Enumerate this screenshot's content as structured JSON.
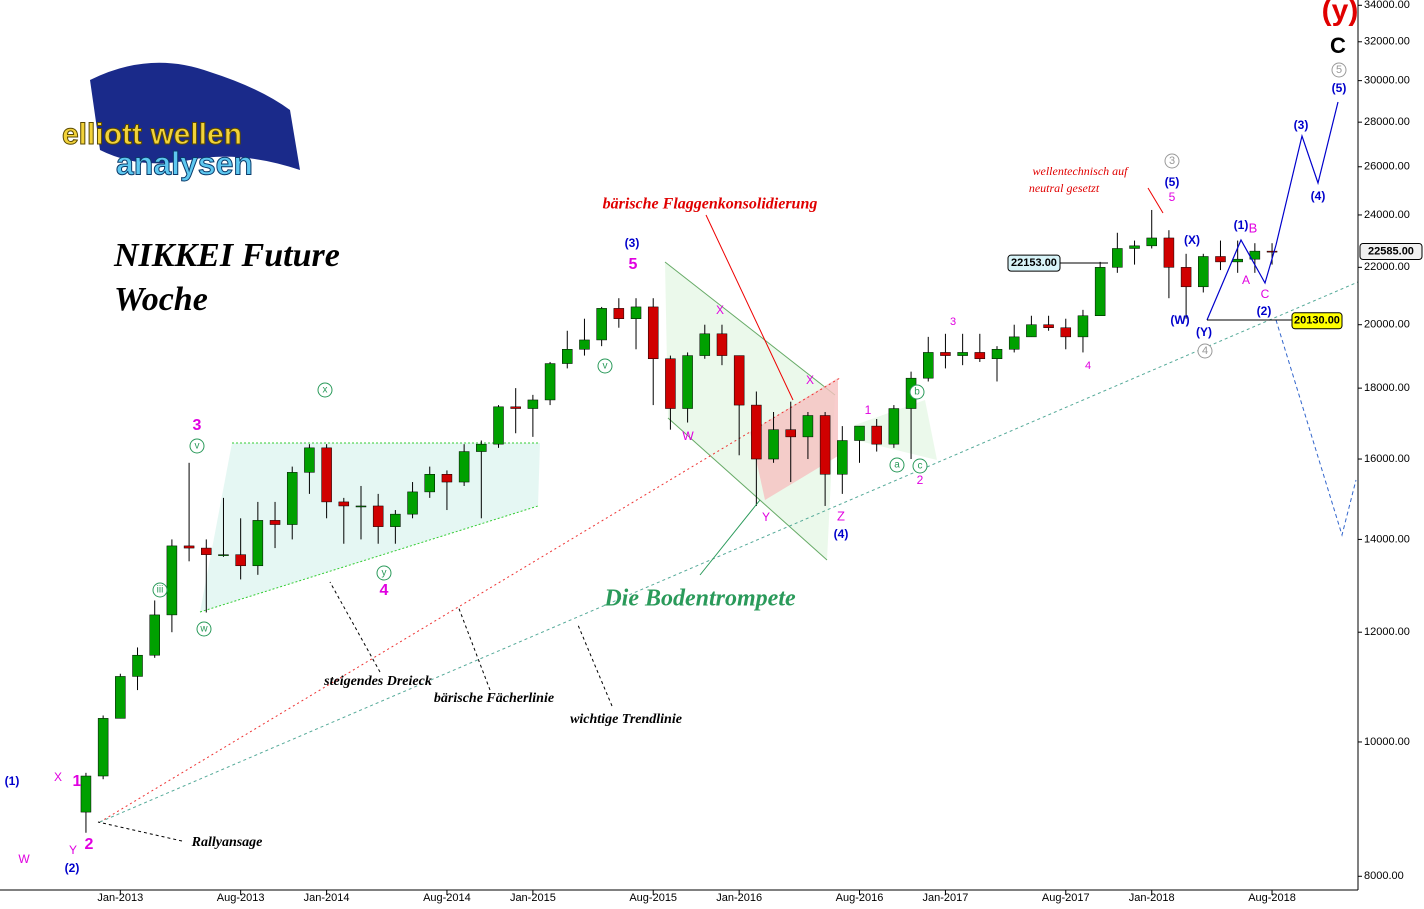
{
  "chart_data": {
    "type": "candlestick",
    "title": "NIKKEI Future",
    "subtitle": "Woche",
    "logo": [
      "elliott wellen",
      "analysen"
    ],
    "log_scale": true,
    "up_color": "#00a000",
    "down_color": "#d00000",
    "xlim": [
      "2012-06",
      "2019-01"
    ],
    "xticks": [
      {
        "value": "2013-01",
        "label": "Jan-2013"
      },
      {
        "value": "2013-08",
        "label": "Aug-2013"
      },
      {
        "value": "2014-01",
        "label": "Jan-2014"
      },
      {
        "value": "2014-08",
        "label": "Aug-2014"
      },
      {
        "value": "2015-01",
        "label": "Jan-2015"
      },
      {
        "value": "2015-08",
        "label": "Aug-2015"
      },
      {
        "value": "2016-01",
        "label": "Jan-2016"
      },
      {
        "value": "2016-08",
        "label": "Aug-2016"
      },
      {
        "value": "2017-01",
        "label": "Jan-2017"
      },
      {
        "value": "2017-08",
        "label": "Aug-2017"
      },
      {
        "value": "2018-01",
        "label": "Jan-2018"
      },
      {
        "value": "2018-08",
        "label": "Aug-2018"
      }
    ],
    "ylim": [
      7640,
      34300
    ],
    "yticks": [
      {
        "value": 8000,
        "label": "8000.00"
      },
      {
        "value": 10000,
        "label": "10000.00"
      },
      {
        "value": 12000,
        "label": "12000.00"
      },
      {
        "value": 14000,
        "label": "14000.00"
      },
      {
        "value": 16000,
        "label": "16000.00"
      },
      {
        "value": 18000,
        "label": "18000.00"
      },
      {
        "value": 20000,
        "label": "20000.00"
      },
      {
        "value": 22000,
        "label": "22000.00"
      },
      {
        "value": 24000,
        "label": "24000.00"
      },
      {
        "value": 26000,
        "label": "26000.00"
      },
      {
        "value": 28000,
        "label": "28000.00"
      },
      {
        "value": 30000,
        "label": "30000.00"
      },
      {
        "value": 32000,
        "label": "32000.00"
      },
      {
        "value": 34000,
        "label": "34000.00"
      }
    ],
    "x": [
      "2012-11",
      "2012-12",
      "2013-01",
      "2013-02",
      "2013-03",
      "2013-04",
      "2013-05",
      "2013-06",
      "2013-07",
      "2013-08",
      "2013-09",
      "2013-10",
      "2013-11",
      "2013-12",
      "2014-01",
      "2014-02",
      "2014-03",
      "2014-04",
      "2014-05",
      "2014-06",
      "2014-07",
      "2014-08",
      "2014-09",
      "2014-10",
      "2014-11",
      "2014-12",
      "2015-01",
      "2015-02",
      "2015-03",
      "2015-04",
      "2015-05",
      "2015-06",
      "2015-07",
      "2015-08",
      "2015-09",
      "2015-10",
      "2015-11",
      "2015-12",
      "2016-01",
      "2016-02",
      "2016-03",
      "2016-04",
      "2016-05",
      "2016-06",
      "2016-07",
      "2016-08",
      "2016-09",
      "2016-10",
      "2016-11",
      "2016-12",
      "2017-01",
      "2017-02",
      "2017-03",
      "2017-04",
      "2017-05",
      "2017-06",
      "2017-07",
      "2017-08",
      "2017-09",
      "2017-10",
      "2017-11",
      "2017-12",
      "2018-01",
      "2018-02",
      "2018-03",
      "2018-04",
      "2018-05",
      "2018-06",
      "2018-07",
      "2018-08"
    ],
    "open": [
      8900,
      9450,
      10400,
      11150,
      11550,
      12350,
      13850,
      13800,
      13650,
      13650,
      13400,
      14450,
      14350,
      15650,
      16300,
      14900,
      14800,
      14800,
      14300,
      14600,
      15150,
      15600,
      15400,
      16200,
      16400,
      17450,
      17400,
      17650,
      18750,
      19200,
      19500,
      20550,
      20200,
      20600,
      18900,
      17400,
      19000,
      19700,
      19000,
      17500,
      16000,
      16800,
      16600,
      17200,
      15600,
      16500,
      16900,
      16400,
      17400,
      18300,
      19100,
      19000,
      19100,
      18900,
      19200,
      19600,
      20000,
      19900,
      19600,
      20300,
      22000,
      22700,
      22800,
      23100,
      22000,
      21300,
      22400,
      22200,
      22300,
      22600
    ],
    "high": [
      9500,
      10450,
      11200,
      11700,
      12650,
      14000,
      15900,
      14000,
      15000,
      14500,
      14900,
      14900,
      15800,
      16400,
      16400,
      15000,
      15300,
      15100,
      14700,
      15400,
      15800,
      15700,
      16400,
      16500,
      17500,
      18000,
      17800,
      18800,
      19800,
      20200,
      20600,
      20900,
      20900,
      20900,
      19000,
      19100,
      20000,
      20000,
      19000,
      17900,
      17300,
      17600,
      17300,
      17300,
      16900,
      16900,
      17100,
      17500,
      18500,
      19600,
      19700,
      19700,
      19700,
      19300,
      20000,
      20300,
      20300,
      20200,
      20500,
      22200,
      23300,
      23000,
      24200,
      23400,
      22500,
      22500,
      23000,
      23000,
      22900,
      22900
    ],
    "low": [
      8600,
      9400,
      10400,
      10900,
      11500,
      12000,
      13500,
      12400,
      13600,
      13100,
      13200,
      13800,
      14000,
      15100,
      14500,
      13900,
      14000,
      13900,
      13900,
      14500,
      15000,
      14700,
      15300,
      14500,
      16300,
      16700,
      16600,
      17500,
      18600,
      19000,
      19300,
      19900,
      19200,
      17500,
      16800,
      17000,
      18900,
      18700,
      16100,
      14800,
      15900,
      15400,
      16000,
      14800,
      15100,
      15900,
      16200,
      16300,
      16000,
      18200,
      18600,
      18700,
      18800,
      18200,
      19100,
      19600,
      19800,
      19200,
      19100,
      20300,
      21800,
      22100,
      22700,
      20900,
      20200,
      21100,
      21900,
      21800,
      21800,
      22100
    ],
    "close": [
      9450,
      10400,
      11150,
      11550,
      12350,
      13850,
      13800,
      13650,
      13650,
      13400,
      14450,
      14350,
      15650,
      16300,
      14900,
      14800,
      14800,
      14300,
      14600,
      15150,
      15600,
      15400,
      16200,
      16400,
      17450,
      17400,
      17650,
      18750,
      19200,
      19500,
      20550,
      20200,
      20600,
      18900,
      17400,
      19000,
      19700,
      19000,
      17500,
      16000,
      16800,
      16600,
      17200,
      15600,
      16500,
      16900,
      16400,
      17400,
      18300,
      19100,
      19000,
      19100,
      18900,
      19200,
      19600,
      20000,
      19900,
      19600,
      20300,
      22000,
      22700,
      22800,
      23100,
      22000,
      21300,
      22400,
      22200,
      22300,
      22600,
      22585
    ],
    "price_labels": [
      {
        "value": 22585,
        "label": "22585.00"
      },
      {
        "value": 22153,
        "label": "22153.00"
      },
      {
        "value": 20130,
        "label": "20130.00"
      }
    ],
    "annotations": [
      {
        "text": "(y)",
        "color": "#e00000"
      },
      {
        "text": "C",
        "color": "#000000"
      },
      {
        "text": "5",
        "color": "#999999"
      },
      {
        "text": "(5)",
        "color": "#0000cc"
      },
      {
        "text": "(3)",
        "color": "#0000cc"
      },
      {
        "text": "(4)",
        "color": "#0000cc"
      },
      {
        "text": "3",
        "color": "#999999"
      },
      {
        "text": "(5)",
        "color": "#0000cc"
      },
      {
        "text": "5",
        "color": "#e000e0"
      },
      {
        "text": "wellentechnisch auf",
        "color": "#e00000"
      },
      {
        "text": "neutral gesetzt",
        "color": "#e00000"
      },
      {
        "text": "(X)",
        "color": "#0000cc"
      },
      {
        "text": "(W)",
        "color": "#0000cc"
      },
      {
        "text": "(Y)",
        "color": "#0000cc"
      },
      {
        "text": "4",
        "color": "#999999"
      },
      {
        "text": "(1)",
        "color": "#0000cc"
      },
      {
        "text": "B",
        "color": "#e000e0"
      },
      {
        "text": "A",
        "color": "#e000e0"
      },
      {
        "text": "C",
        "color": "#e000e0"
      },
      {
        "text": "(2)",
        "color": "#0000cc"
      },
      {
        "text": "3",
        "color": "#e000e0"
      },
      {
        "text": "4",
        "color": "#e000e0"
      },
      {
        "text": "1",
        "color": "#e000e0"
      },
      {
        "text": "2",
        "color": "#e000e0"
      },
      {
        "text": "b",
        "color": "#2a9a5a"
      },
      {
        "text": "a",
        "color": "#2a9a5a"
      },
      {
        "text": "c",
        "color": "#2a9a5a"
      },
      {
        "text": "Z",
        "color": "#e000e0"
      },
      {
        "text": "(4)",
        "color": "#0000cc"
      },
      {
        "text": "Y",
        "color": "#e000e0"
      },
      {
        "text": "X",
        "color": "#e000e0"
      },
      {
        "text": "X",
        "color": "#e000e0"
      },
      {
        "text": "W",
        "color": "#e000e0"
      },
      {
        "text": "(3)",
        "color": "#0000cc"
      },
      {
        "text": "5",
        "color": "#e000e0"
      },
      {
        "text": "bärische Flaggenkonsolidierung",
        "color": "#e00000"
      },
      {
        "text": "Die Bodentrompete",
        "color": "#2a9a5a"
      },
      {
        "text": "3",
        "color": "#e000e0"
      },
      {
        "text": "4",
        "color": "#e000e0"
      },
      {
        "text": "1",
        "color": "#e000e0"
      },
      {
        "text": "2",
        "color": "#e000e0"
      },
      {
        "text": "(1)",
        "color": "#0000cc"
      },
      {
        "text": "W",
        "color": "#e000e0"
      },
      {
        "text": "(2)",
        "color": "#0000cc"
      },
      {
        "text": "Y",
        "color": "#e000e0"
      },
      {
        "text": "X",
        "color": "#e000e0"
      },
      {
        "text": "steigendes Dreieck",
        "color": "#000000"
      },
      {
        "text": "bärische Fächerlinie",
        "color": "#000000"
      },
      {
        "text": "wichtige Trendlinie",
        "color": "#000000"
      },
      {
        "text": "Rallyansage",
        "color": "#000000"
      },
      {
        "text": "v",
        "color": "#2a9a5a"
      },
      {
        "text": "y",
        "color": "#2a9a5a"
      },
      {
        "text": "x",
        "color": "#2a9a5a"
      },
      {
        "text": "w",
        "color": "#2a9a5a"
      },
      {
        "text": "iii",
        "color": "#2a9a5a"
      },
      {
        "text": "v",
        "color": "#2a9a5a"
      }
    ]
  }
}
